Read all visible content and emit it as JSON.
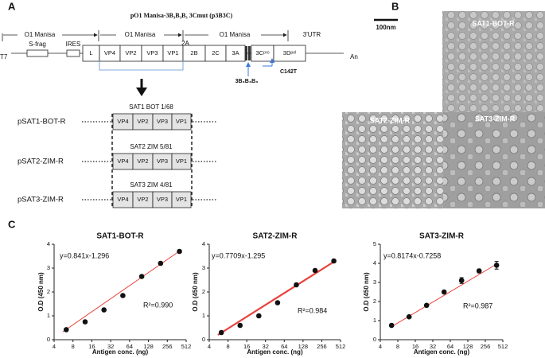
{
  "panel_labels": [
    "A",
    "B",
    "C"
  ],
  "diagram": {
    "title": "pO1 Manisa-3B₃B₃B₃ 3Cmut (p3B3C)",
    "regions": [
      "O1 Manisa",
      "O1  Manisa",
      "O1 Manisa"
    ],
    "utr": "3'UTR",
    "promoter": "T7",
    "poly_a": "An",
    "s_frag": "S-frag",
    "ires": "IRES",
    "cleavage": "2A",
    "genes": [
      "L",
      "VP4",
      "VP2",
      "VP3",
      "VP1",
      "2B",
      "2C",
      "3A",
      "3Cᵖʳᵒ",
      "3Dᵖᵒˡ"
    ],
    "insert": "3B₃B₃B₃",
    "mutation": "C142T",
    "constructs": [
      {
        "strain": "SAT1 BOT 1/68",
        "name": "pSAT1-BOT-R",
        "genes": [
          "VP4",
          "VP2",
          "VP3",
          "VP1"
        ]
      },
      {
        "strain": "SAT2 ZIM 5/81",
        "name": "pSAT2-ZIM-R",
        "genes": [
          "VP4",
          "VP2",
          "VP3",
          "VP1"
        ]
      },
      {
        "strain": "SAT3 ZIM 4/81",
        "name": "pSAT3-ZIM-R",
        "genes": [
          "VP4",
          "VP2",
          "VP3",
          "VP1"
        ]
      }
    ]
  },
  "micrograph": {
    "scale_bar": "100nm",
    "labels": [
      "SAT1-BOT-R",
      "SAT2-ZIM-R",
      "SAT3-ZIM-R"
    ]
  },
  "chart_data": [
    {
      "type": "scatter",
      "title": "SAT1-BOT-R",
      "xlabel": "Antigen conc. (ng)",
      "ylabel": "O.D (450 nm)",
      "x": [
        6.25,
        12.5,
        25,
        50,
        100,
        200,
        400
      ],
      "values": [
        0.42,
        0.75,
        1.25,
        1.85,
        2.65,
        3.2,
        3.7
      ],
      "xscale": "log2",
      "xlim": [
        4,
        512
      ],
      "xticks": [
        4,
        8,
        16,
        32,
        64,
        128,
        256,
        512
      ],
      "ylim": [
        0,
        4
      ],
      "yticks": [
        0,
        1,
        2,
        3,
        4
      ],
      "color": "#111111",
      "fit": {
        "equation": "y=0.841x-1.296",
        "r2": "R²=0.990",
        "x": [
          5.5,
          420
        ],
        "y": [
          0.33,
          3.75
        ],
        "color": "#e8413a"
      }
    },
    {
      "type": "scatter",
      "title": "SAT2-ZIM-R",
      "xlabel": "Antigen conc. (ng)",
      "ylabel": "O.D (450 nm)",
      "x": [
        6.25,
        12.5,
        25,
        50,
        100,
        200,
        400
      ],
      "values": [
        0.3,
        0.6,
        1.0,
        1.55,
        2.3,
        2.9,
        3.3
      ],
      "xscale": "log2",
      "xlim": [
        4,
        512
      ],
      "xticks": [
        4,
        8,
        16,
        32,
        64,
        128,
        256,
        512
      ],
      "ylim": [
        0,
        4
      ],
      "yticks": [
        0,
        1,
        2,
        3,
        4
      ],
      "color": "#111111",
      "fit": {
        "equation": "y=0.7709x-1.295",
        "r2": "R²=0.984",
        "x": [
          5.5,
          420
        ],
        "y": [
          0.2,
          3.3
        ],
        "color": "#e8413a"
      }
    },
    {
      "type": "scatter",
      "title": "SAT3-ZIM-R",
      "xlabel": "Antigen conc. (ng)",
      "ylabel": "O.D (450 nm)",
      "x": [
        6.25,
        12.5,
        25,
        50,
        100,
        200,
        400
      ],
      "values": [
        0.75,
        1.2,
        1.8,
        2.5,
        3.1,
        3.6,
        3.9
      ],
      "errors": [
        0.05,
        0.05,
        0.06,
        0.06,
        0.15,
        0.1,
        0.2
      ],
      "xscale": "log2",
      "xlim": [
        4,
        512
      ],
      "xticks": [
        4,
        8,
        16,
        32,
        64,
        128,
        256,
        512
      ],
      "ylim": [
        0,
        5
      ],
      "yticks": [
        0,
        1,
        2,
        3,
        4,
        5
      ],
      "color": "#111111",
      "fit": {
        "equation": "y=0.8174x-0.7258",
        "r2": "R²=0.987",
        "x": [
          6,
          420
        ],
        "y": [
          0.65,
          4.0
        ],
        "color": "#e8413a"
      }
    }
  ]
}
